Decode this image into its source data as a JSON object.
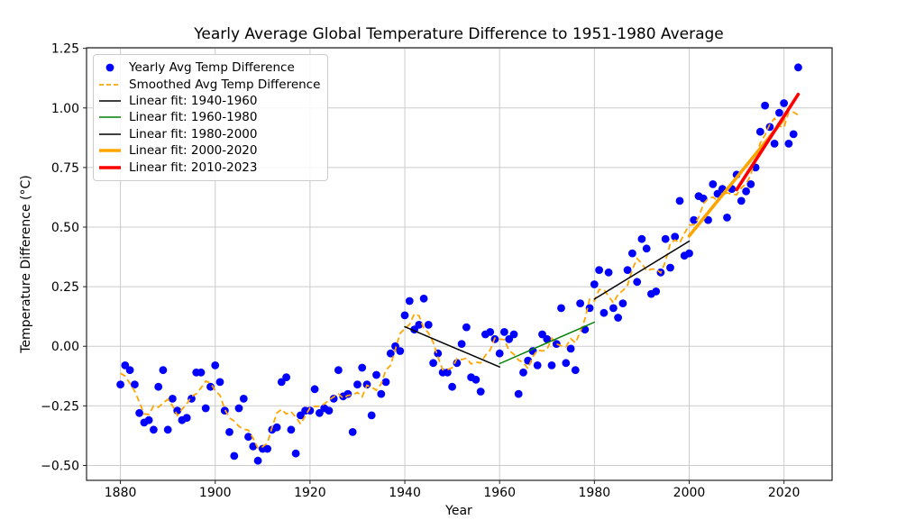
{
  "chart_data": {
    "type": "scatter+line",
    "title": "Yearly Average Global Temperature Difference to 1951-1980 Average",
    "xlabel": "Year",
    "ylabel": "Temperature Difference (°C)",
    "xlim": [
      1872.85,
      2030.15
    ],
    "ylim": [
      -0.5625,
      1.2525
    ],
    "xticks": [
      1880,
      1900,
      1920,
      1940,
      1960,
      1980,
      2000,
      2020
    ],
    "yticks": [
      -0.5,
      -0.25,
      0.0,
      0.25,
      0.5,
      0.75,
      1.0,
      1.25
    ],
    "grid": true,
    "grid_color": "#cccccc",
    "legend_position": "upper left",
    "series": [
      {
        "id": "yearly",
        "label": "Yearly Avg Temp Difference",
        "type": "scatter",
        "color": "#0000ff",
        "marker": "dot",
        "years": [
          1880,
          1881,
          1882,
          1883,
          1884,
          1885,
          1886,
          1887,
          1888,
          1889,
          1890,
          1891,
          1892,
          1893,
          1894,
          1895,
          1896,
          1897,
          1898,
          1899,
          1900,
          1901,
          1902,
          1903,
          1904,
          1905,
          1906,
          1907,
          1908,
          1909,
          1910,
          1911,
          1912,
          1913,
          1914,
          1915,
          1916,
          1917,
          1918,
          1919,
          1920,
          1921,
          1922,
          1923,
          1924,
          1925,
          1926,
          1927,
          1928,
          1929,
          1930,
          1931,
          1932,
          1933,
          1934,
          1935,
          1936,
          1937,
          1938,
          1939,
          1940,
          1941,
          1942,
          1943,
          1944,
          1945,
          1946,
          1947,
          1948,
          1949,
          1950,
          1951,
          1952,
          1953,
          1954,
          1955,
          1956,
          1957,
          1958,
          1959,
          1960,
          1961,
          1962,
          1963,
          1964,
          1965,
          1966,
          1967,
          1968,
          1969,
          1970,
          1971,
          1972,
          1973,
          1974,
          1975,
          1976,
          1977,
          1978,
          1979,
          1980,
          1981,
          1982,
          1983,
          1984,
          1985,
          1986,
          1987,
          1988,
          1989,
          1990,
          1991,
          1992,
          1993,
          1994,
          1995,
          1996,
          1997,
          1998,
          1999,
          2000,
          2001,
          2002,
          2003,
          2004,
          2005,
          2006,
          2007,
          2008,
          2009,
          2010,
          2011,
          2012,
          2013,
          2014,
          2015,
          2016,
          2017,
          2018,
          2019,
          2020,
          2021,
          2022,
          2023
        ],
        "values": [
          -0.16,
          -0.08,
          -0.1,
          -0.16,
          -0.28,
          -0.32,
          -0.31,
          -0.35,
          -0.17,
          -0.1,
          -0.35,
          -0.22,
          -0.27,
          -0.31,
          -0.3,
          -0.22,
          -0.11,
          -0.11,
          -0.26,
          -0.17,
          -0.08,
          -0.15,
          -0.27,
          -0.36,
          -0.46,
          -0.26,
          -0.22,
          -0.38,
          -0.42,
          -0.48,
          -0.43,
          -0.43,
          -0.35,
          -0.34,
          -0.15,
          -0.13,
          -0.35,
          -0.45,
          -0.29,
          -0.27,
          -0.27,
          -0.18,
          -0.28,
          -0.26,
          -0.27,
          -0.22,
          -0.1,
          -0.21,
          -0.2,
          -0.36,
          -0.16,
          -0.09,
          -0.16,
          -0.29,
          -0.12,
          -0.2,
          -0.15,
          -0.03,
          0.0,
          -0.02,
          0.13,
          0.19,
          0.07,
          0.09,
          0.2,
          0.09,
          -0.07,
          -0.03,
          -0.11,
          -0.11,
          -0.17,
          -0.07,
          0.01,
          0.08,
          -0.13,
          -0.14,
          -0.19,
          0.05,
          0.06,
          0.03,
          -0.03,
          0.06,
          0.03,
          0.05,
          -0.2,
          -0.11,
          -0.06,
          -0.02,
          -0.08,
          0.05,
          0.03,
          -0.08,
          0.01,
          0.16,
          -0.07,
          -0.01,
          -0.1,
          0.18,
          0.07,
          0.16,
          0.26,
          0.32,
          0.14,
          0.31,
          0.16,
          0.12,
          0.18,
          0.32,
          0.39,
          0.27,
          0.45,
          0.41,
          0.22,
          0.23,
          0.31,
          0.45,
          0.33,
          0.46,
          0.61,
          0.38,
          0.39,
          0.53,
          0.63,
          0.62,
          0.53,
          0.68,
          0.64,
          0.66,
          0.54,
          0.66,
          0.72,
          0.61,
          0.65,
          0.68,
          0.75,
          0.9,
          1.01,
          0.92,
          0.85,
          0.98,
          1.02,
          0.85,
          0.89,
          1.17
        ]
      },
      {
        "id": "smoothed",
        "label": "Smoothed Avg Temp Difference",
        "type": "smoothed",
        "color": "#ffa500",
        "line": "dashed",
        "width": 1.8,
        "window": 5,
        "source": "yearly"
      },
      {
        "id": "fit-1940-1960",
        "label": "Linear fit: 1940-1960",
        "type": "fit",
        "color": "#000000",
        "width": 1.5,
        "x": [
          1940,
          1960
        ],
        "y": [
          0.082,
          -0.087
        ]
      },
      {
        "id": "fit-1960-1980",
        "label": "Linear fit: 1960-1980",
        "type": "fit",
        "color": "#008000",
        "width": 1.5,
        "x": [
          1960,
          1980
        ],
        "y": [
          -0.073,
          0.101
        ]
      },
      {
        "id": "fit-1980-2000",
        "label": "Linear fit: 1980-2000",
        "type": "fit",
        "color": "#000000",
        "width": 1.5,
        "x": [
          1980,
          2000
        ],
        "y": [
          0.198,
          0.441
        ]
      },
      {
        "id": "fit-2000-2020",
        "label": "Linear fit: 2000-2020",
        "type": "fit",
        "color": "#ffa500",
        "width": 3.6,
        "x": [
          2000,
          2020
        ],
        "y": [
          0.463,
          0.953
        ]
      },
      {
        "id": "fit-2010-2023",
        "label": "Linear fit: 2010-2023",
        "type": "fit",
        "color": "#ff0000",
        "width": 3.6,
        "x": [
          2010,
          2023
        ],
        "y": [
          0.657,
          1.057
        ]
      }
    ]
  }
}
